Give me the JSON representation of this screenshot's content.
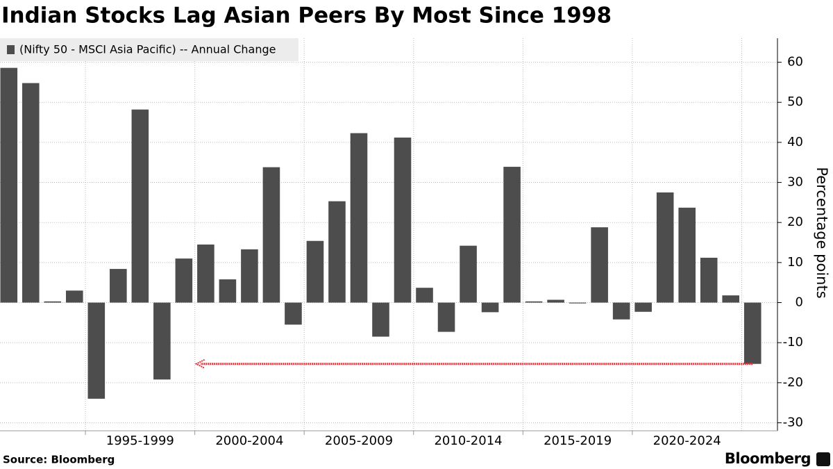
{
  "chart_data": {
    "type": "bar",
    "title": "Indian Stocks Lag Asian Peers By Most Since 1998",
    "legend": "(Nifty 50 - MSCI Asia Pacific) -- Annual Change",
    "y_label": "Percentage points",
    "source": "Source: Bloomberg",
    "brand": "Bloomberg",
    "color": "#4d4d4d",
    "annotation_color": "#e0303a",
    "categories": [
      null,
      null,
      null,
      null,
      null,
      null,
      null,
      null,
      null,
      null,
      null,
      null,
      null,
      null,
      null,
      null,
      null,
      null,
      null,
      null,
      null,
      null,
      null,
      null,
      null,
      null,
      null,
      null,
      null,
      null,
      null,
      null,
      null,
      null,
      null
    ],
    "x_group_labels": [
      "1995-1999",
      "2000-2004",
      "2005-2009",
      "2010-2014",
      "2015-2019",
      "2020-2024"
    ],
    "values": [
      58.6,
      54.8,
      0.3,
      3.0,
      -24.0,
      8.4,
      48.2,
      -19.2,
      11.0,
      14.5,
      5.8,
      13.3,
      33.8,
      -5.5,
      15.4,
      25.3,
      42.3,
      -8.5,
      41.2,
      3.7,
      -7.3,
      14.2,
      -2.4,
      33.9,
      0.3,
      0.7,
      -0.2,
      18.8,
      -4.2,
      -2.3,
      27.5,
      23.7,
      11.2,
      1.8,
      -15.3
    ],
    "ylim": [
      -32,
      66
    ],
    "yticks": [
      -30,
      -20,
      -10,
      0,
      10,
      20,
      30,
      40,
      50,
      60
    ],
    "grid": true
  }
}
